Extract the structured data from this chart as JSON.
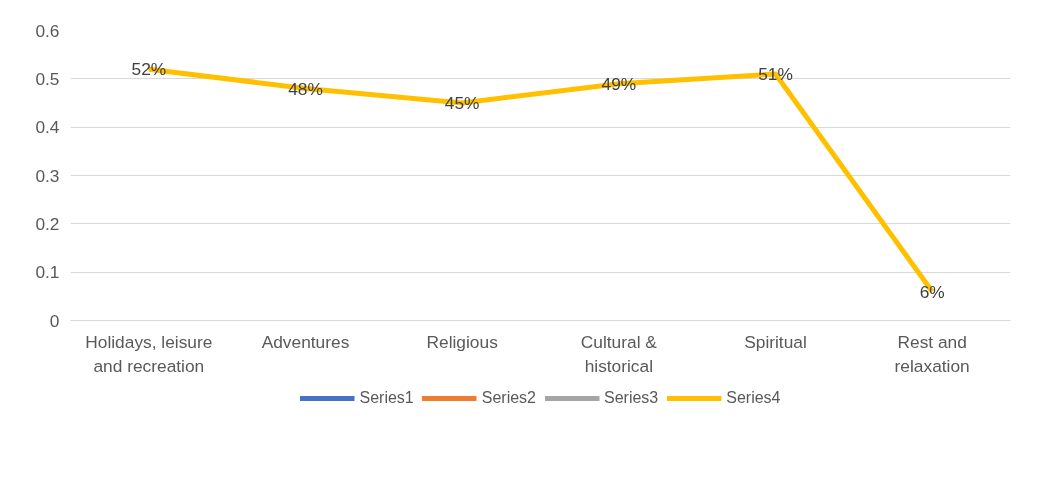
{
  "chart_data": {
    "type": "line",
    "categories": [
      "Holidays, leisure and recreation",
      "Adventures",
      "Religious",
      "Cultural & historical",
      "Spiritual",
      "Rest and relaxation"
    ],
    "series": [
      {
        "name": "Series1",
        "color": "#4472c4",
        "values": [
          null,
          null,
          null,
          null,
          null,
          null
        ]
      },
      {
        "name": "Series2",
        "color": "#ed7d31",
        "values": [
          null,
          null,
          null,
          null,
          null,
          null
        ]
      },
      {
        "name": "Series3",
        "color": "#a5a5a5",
        "values": [
          null,
          null,
          null,
          null,
          null,
          null
        ]
      },
      {
        "name": "Series4",
        "color": "#ffc000",
        "values": [
          0.52,
          0.48,
          0.45,
          0.49,
          0.51,
          0.06
        ],
        "value_labels": [
          "52%",
          "48%",
          "45%",
          "49%",
          "51%",
          "6%"
        ]
      }
    ],
    "ylim": [
      0,
      0.6
    ],
    "yticks": [
      0,
      {
        "value": 0.1,
        "label": "0.1"
      },
      {
        "value": 0.2,
        "label": "0.2"
      },
      {
        "value": 0.3,
        "label": "0.3"
      },
      {
        "value": 0.4,
        "label": "0.4"
      },
      {
        "value": 0.5,
        "label": "0.5"
      },
      {
        "value": 0.6,
        "label": "0.6"
      }
    ],
    "grid": "y",
    "legend": "bottom",
    "marker": "none",
    "line_style": "solid"
  }
}
